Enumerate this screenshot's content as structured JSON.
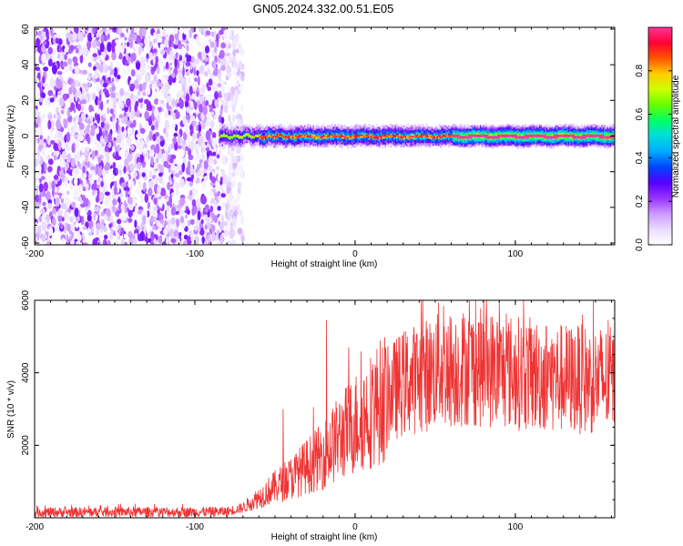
{
  "title": "GN05.2024.332.00.51.E05",
  "chart_data": [
    {
      "type": "heatmap",
      "title": "GN05.2024.332.00.51.E05",
      "xlabel": "Height of straight line (km)",
      "ylabel": "Frequency (Hz)",
      "xlim": [
        -200,
        162
      ],
      "ylim": [
        -61,
        61
      ],
      "xticks": [
        "-200",
        "-100",
        "0",
        "100"
      ],
      "yticks": [
        "60",
        "40",
        "20",
        "0",
        "-20",
        "-40",
        "-60"
      ],
      "noise_region_x": [
        -200,
        -75
      ],
      "signal_region_x": [
        -85,
        162
      ],
      "signal_frequency_hz": 0,
      "signal_bandwidth_hz": [
        -5,
        5
      ],
      "colorbar": {
        "label": "Normalized spectral amplitude",
        "range": [
          0,
          1
        ],
        "ticks": [
          "0.0",
          "0.2",
          "0.4",
          "0.6",
          "0.8"
        ],
        "colormap": [
          "#ffffff",
          "#e9dcff",
          "#cc99ff",
          "#9933ff",
          "#5500ff",
          "#0044ff",
          "#00aaff",
          "#00dddd",
          "#00ff66",
          "#66ff00",
          "#ccff00",
          "#ffcc00",
          "#ff5500",
          "#ff0033",
          "#ff3399"
        ]
      },
      "grid": false
    },
    {
      "type": "line",
      "xlabel": "Height of straight line (km)",
      "ylabel": "SNR (10 * v/v)",
      "xlim": [
        -200,
        162
      ],
      "ylim": [
        0,
        6000
      ],
      "xticks": [
        "-200",
        "-100",
        "0",
        "100"
      ],
      "yticks": [
        "6000",
        "4000",
        "2000"
      ],
      "line_color": "#ee3333",
      "grid": false,
      "series": [
        {
          "x": [
            -200,
            -150,
            -100,
            -80,
            -70,
            -60,
            -50,
            -40,
            -30,
            -20,
            -10,
            0,
            10,
            20,
            30,
            40,
            50,
            60,
            70,
            80,
            90,
            100,
            110,
            120,
            130,
            140,
            150,
            162
          ],
          "values": [
            150,
            160,
            160,
            170,
            280,
            560,
            850,
            1100,
            1420,
            1720,
            2200,
            2600,
            2980,
            3370,
            3720,
            3870,
            4030,
            4100,
            4170,
            4130,
            4080,
            4000,
            3960,
            3900,
            3850,
            3820,
            3800,
            3780
          ]
        }
      ],
      "spikes": [
        {
          "x": -45,
          "y": 3000
        },
        {
          "x": -18,
          "y": 5450
        },
        {
          "x": -8,
          "y": 2800
        },
        {
          "x": 42,
          "y": 6000
        },
        {
          "x": 52,
          "y": 5950
        },
        {
          "x": 55,
          "y": 5850
        },
        {
          "x": 60,
          "y": 5500
        }
      ]
    }
  ]
}
